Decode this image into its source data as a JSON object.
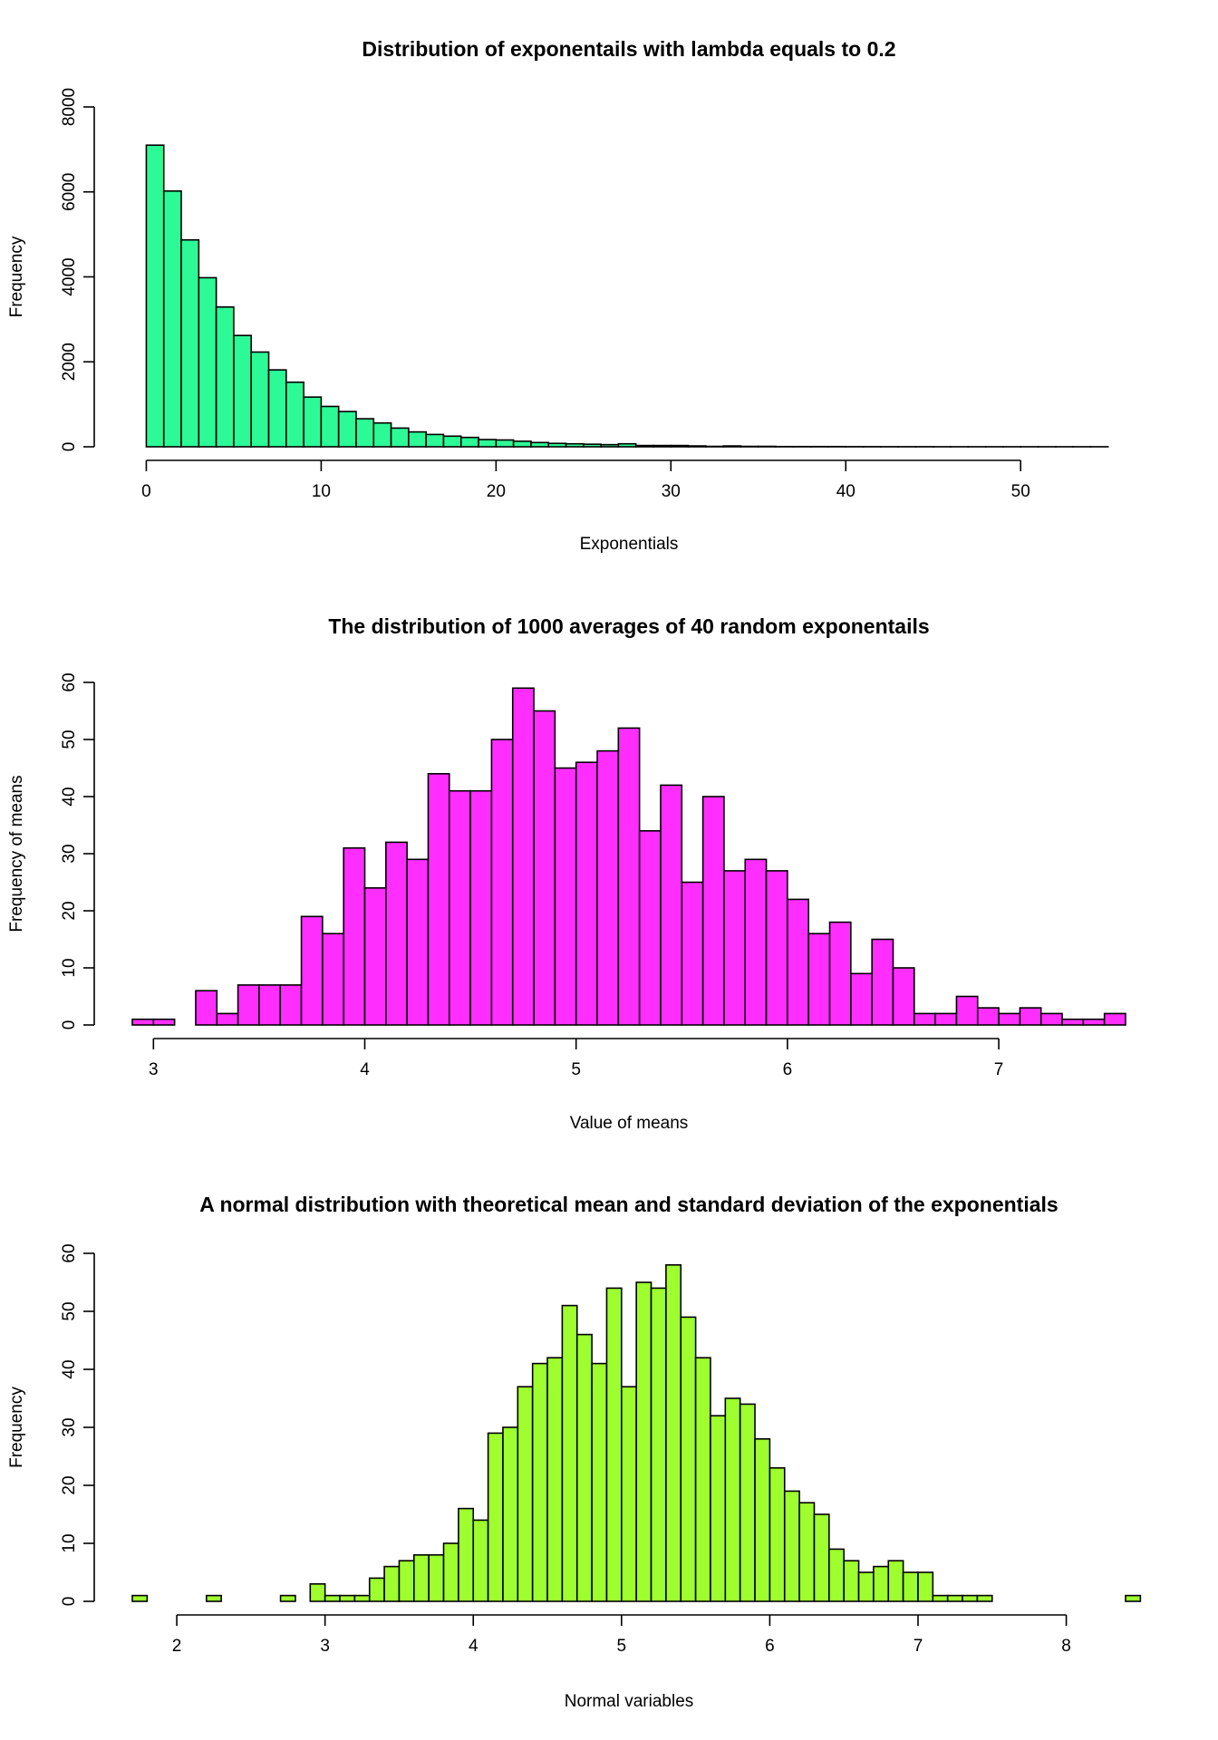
{
  "chart_data": [
    {
      "type": "bar",
      "title": "Distribution of exponentails with lambda equals to 0.2",
      "xlabel": "Exponentials",
      "ylabel": "Frequency",
      "color": "#2cfa96",
      "xlim": [
        -0.8,
        56
      ],
      "ylim": [
        0,
        8000
      ],
      "xticks": [
        0,
        10,
        20,
        30,
        40,
        50
      ],
      "yticks": [
        0,
        2000,
        4000,
        6000,
        8000
      ],
      "bin_start": 0,
      "bin_width": 1,
      "values": [
        7100,
        6020,
        4870,
        3980,
        3290,
        2620,
        2230,
        1810,
        1520,
        1170,
        950,
        830,
        660,
        560,
        440,
        350,
        290,
        250,
        220,
        170,
        160,
        130,
        100,
        80,
        70,
        60,
        50,
        70,
        30,
        30,
        30,
        20,
        10,
        20,
        10,
        10,
        5,
        5,
        5,
        5,
        3,
        3,
        2,
        2,
        2,
        1,
        1,
        1,
        1,
        1,
        1,
        1,
        1,
        1,
        1
      ]
    },
    {
      "type": "bar",
      "title": "The distribution of 1000 averages of 40 random exponentails",
      "xlabel": "Value of means",
      "ylabel": "Frequency of means",
      "color": "#ff2eff",
      "xlim": [
        2.9,
        7.6
      ],
      "ylim": [
        0,
        60
      ],
      "xticks": [
        3,
        4,
        5,
        6,
        7
      ],
      "yticks": [
        0,
        10,
        20,
        30,
        40,
        50,
        60
      ],
      "bin_start": 2.9,
      "bin_width": 0.1,
      "values": [
        1,
        1,
        0,
        6,
        2,
        7,
        7,
        7,
        19,
        16,
        31,
        24,
        32,
        29,
        44,
        41,
        41,
        50,
        59,
        55,
        45,
        46,
        48,
        52,
        34,
        42,
        25,
        40,
        27,
        29,
        27,
        22,
        16,
        18,
        9,
        15,
        10,
        2,
        2,
        5,
        3,
        2,
        3,
        2,
        1,
        1,
        2
      ]
    },
    {
      "type": "bar",
      "title": "A normal distribution with theoretical mean and standard deviation of the exponentials",
      "xlabel": "Normal variables",
      "ylabel": "Frequency",
      "color": "#9efe2e",
      "xlim": [
        1.7,
        8.4
      ],
      "ylim": [
        0,
        60
      ],
      "xticks": [
        2,
        3,
        4,
        5,
        6,
        7,
        8
      ],
      "yticks": [
        0,
        10,
        20,
        30,
        40,
        50,
        60
      ],
      "bin_start": 1.7,
      "bin_width": 0.1,
      "values": [
        1,
        0,
        0,
        0,
        0,
        1,
        0,
        0,
        0,
        0,
        1,
        0,
        3,
        1,
        1,
        1,
        4,
        6,
        7,
        8,
        8,
        10,
        16,
        14,
        29,
        30,
        37,
        41,
        42,
        51,
        46,
        41,
        54,
        37,
        55,
        54,
        58,
        49,
        42,
        32,
        35,
        34,
        28,
        23,
        19,
        17,
        15,
        9,
        7,
        5,
        6,
        7,
        5,
        5,
        1,
        1,
        1,
        1,
        0,
        0,
        0,
        0,
        0,
        0,
        0,
        0,
        0,
        1
      ]
    }
  ]
}
